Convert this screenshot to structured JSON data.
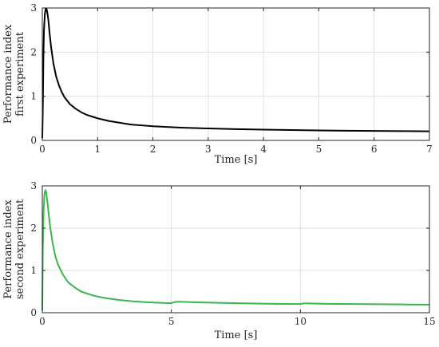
{
  "chart_data": [
    {
      "type": "line",
      "xlabel": "Time [s]",
      "ylabel_lines": [
        "Performance index",
        "first experiment"
      ],
      "xlim": [
        0,
        7
      ],
      "ylim": [
        0,
        3
      ],
      "xticks": [
        0,
        1,
        2,
        3,
        4,
        5,
        6,
        7
      ],
      "yticks": [
        0,
        1,
        2,
        3
      ],
      "grid": true,
      "series": [
        {
          "color": "#000000",
          "x": [
            0,
            0.01,
            0.02,
            0.03,
            0.045,
            0.06,
            0.075,
            0.09,
            0.11,
            0.13,
            0.16,
            0.2,
            0.25,
            0.3,
            0.35,
            0.4,
            0.5,
            0.6,
            0.7,
            0.8,
            0.9,
            1.0,
            1.2,
            1.4,
            1.6,
            1.8,
            2.0,
            2.5,
            3.0,
            3.5,
            4.0,
            4.5,
            5.0,
            5.5,
            6.0,
            6.5,
            7.0
          ],
          "y": [
            0.05,
            0.8,
            1.9,
            2.5,
            2.85,
            2.98,
            2.99,
            2.9,
            2.72,
            2.45,
            2.1,
            1.75,
            1.45,
            1.25,
            1.1,
            0.98,
            0.82,
            0.72,
            0.64,
            0.58,
            0.54,
            0.5,
            0.44,
            0.4,
            0.36,
            0.34,
            0.32,
            0.29,
            0.27,
            0.255,
            0.245,
            0.235,
            0.225,
            0.22,
            0.215,
            0.21,
            0.205
          ]
        }
      ]
    },
    {
      "type": "line",
      "xlabel": "Time [s]",
      "ylabel_lines": [
        "Performance index",
        "second experiment"
      ],
      "xlim": [
        0,
        15
      ],
      "ylim": [
        0,
        3
      ],
      "xticks": [
        0,
        5,
        10,
        15
      ],
      "yticks": [
        0,
        1,
        2,
        3
      ],
      "grid": true,
      "series": [
        {
          "color": "#3cb54a",
          "x": [
            0,
            0.02,
            0.05,
            0.08,
            0.12,
            0.15,
            0.2,
            0.3,
            0.4,
            0.5,
            0.6,
            0.8,
            1.0,
            1.25,
            1.5,
            2.0,
            2.5,
            3.0,
            3.5,
            4.0,
            4.5,
            5.0,
            5.1,
            5.3,
            6.0,
            7.0,
            8.0,
            9.0,
            10.0,
            10.1,
            10.3,
            11.0,
            12.0,
            13.0,
            14.0,
            15.0
          ],
          "y": [
            0.05,
            1.5,
            2.4,
            2.8,
            2.9,
            2.85,
            2.6,
            2.05,
            1.65,
            1.35,
            1.15,
            0.9,
            0.72,
            0.6,
            0.5,
            0.4,
            0.34,
            0.3,
            0.27,
            0.25,
            0.235,
            0.225,
            0.25,
            0.26,
            0.245,
            0.23,
            0.22,
            0.21,
            0.205,
            0.22,
            0.22,
            0.21,
            0.205,
            0.2,
            0.195,
            0.19
          ]
        }
      ]
    }
  ]
}
